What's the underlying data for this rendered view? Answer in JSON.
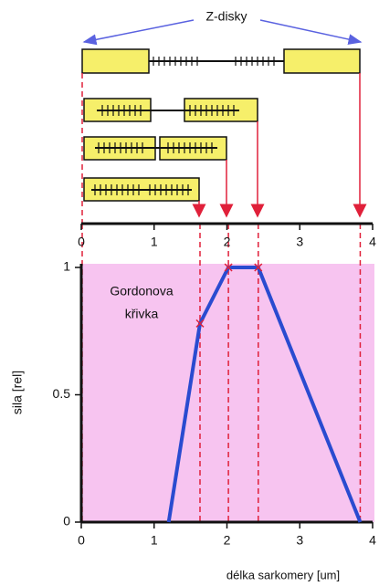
{
  "chart_data": {
    "type": "line",
    "label_top": "Z-disky",
    "annotation": [
      "Gordonova",
      "křivka"
    ],
    "x_label": "délka sarkomery [um]",
    "y_label": "sila [rel]",
    "x": [
      1.2,
      1.63,
      2.02,
      2.43,
      3.83
    ],
    "series": [
      {
        "color": "#2a4bd0",
        "values": [
          0,
          0.78,
          1,
          1,
          0
        ]
      }
    ],
    "marker_color": "#e0203a",
    "xlim": [
      0,
      4
    ],
    "xticks": [
      0,
      1,
      2,
      3,
      4
    ],
    "ylim": [
      0,
      1
    ],
    "yticks": [
      0,
      0.5,
      1
    ],
    "background": "#f7c4f0"
  }
}
